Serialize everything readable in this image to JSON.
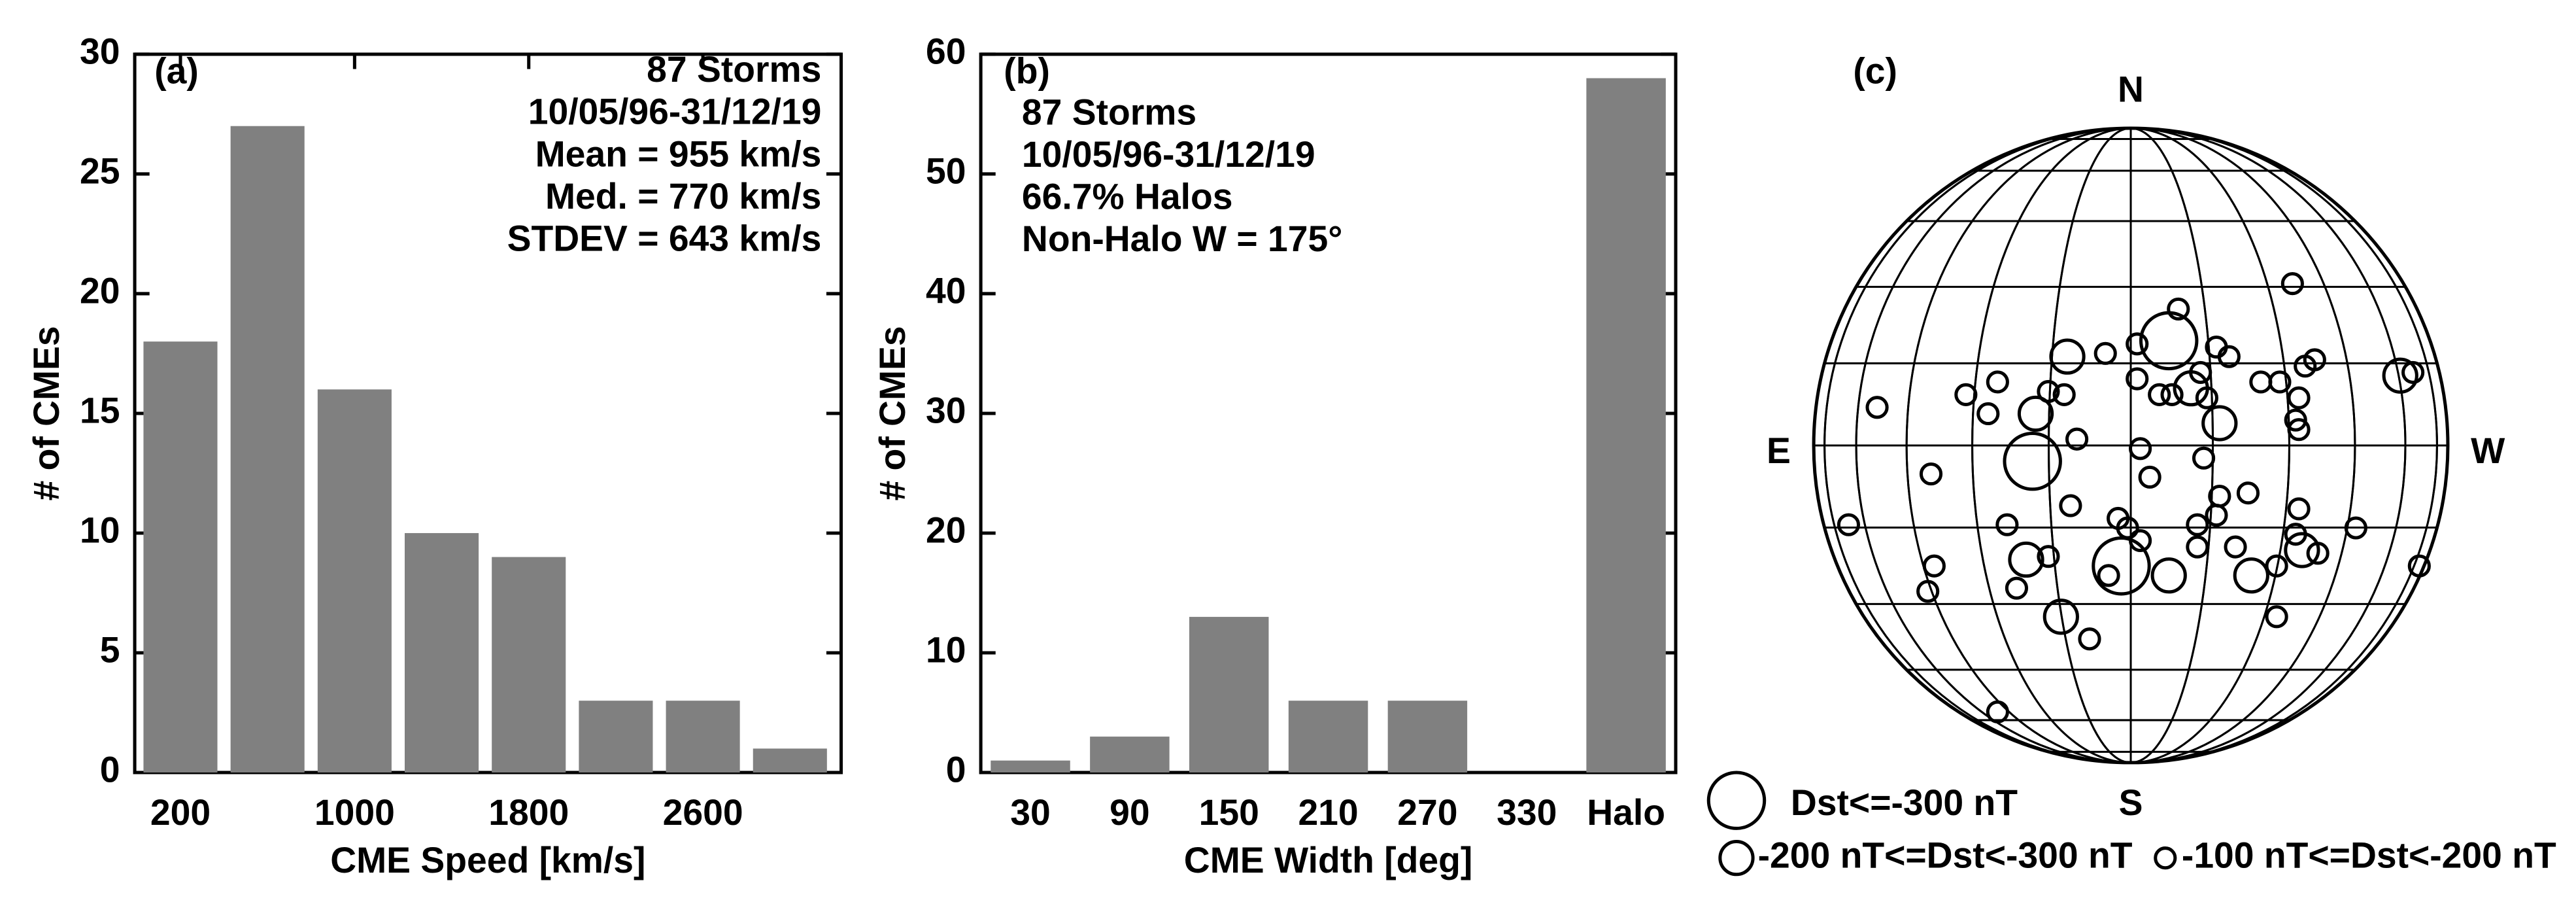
{
  "chart_data": [
    {
      "type": "histogram",
      "panel_label": "(a)",
      "annotations": [
        "87 Storms",
        "10/05/96-31/12/19",
        "Mean =  955 km/s",
        "Med. =  770 km/s",
        "STDEV = 643 km/s"
      ],
      "bins": [
        0,
        400,
        800,
        1200,
        1600,
        2000,
        2400,
        2800,
        3200
      ],
      "values": [
        18,
        27,
        16,
        10,
        9,
        3,
        3,
        1
      ],
      "color": "#808080",
      "xlim": [
        -10,
        3235
      ],
      "ylim": [
        0,
        30
      ],
      "xticks": [
        200,
        1000,
        1800,
        2600
      ],
      "yticks": [
        0,
        5,
        10,
        15,
        20,
        25,
        30
      ],
      "xlabel": "CME Speed [km/s]",
      "ylabel": "# of CMEs"
    },
    {
      "type": "bar",
      "panel_label": "(b)",
      "annotations": [
        "87 Storms",
        "10/05/96-31/12/19",
        "66.7% Halos",
        "Non-Halo W = 175°"
      ],
      "categories": [
        "30",
        "90",
        "150",
        "210",
        "270",
        "330",
        "Halo"
      ],
      "values": [
        1,
        3,
        13,
        6,
        6,
        0,
        58
      ],
      "color": "#808080",
      "ylim": [
        0,
        60
      ],
      "yticks": [
        0,
        10,
        20,
        30,
        40,
        50,
        60
      ],
      "xlabel": "CME Width [deg]",
      "ylabel": "# of CMEs"
    },
    {
      "type": "scatter",
      "panel_label": "(c)",
      "direction_labels": [
        "N",
        "S",
        "E",
        "W"
      ],
      "xlim": [
        -1,
        1
      ],
      "ylim": [
        -1,
        1
      ],
      "series": [
        {
          "name": "Dst<=-300 nT",
          "color": "#000000",
          "x": [
            -0.31,
            0.12,
            -0.03
          ],
          "y": [
            -0.05,
            0.33,
            -0.38
          ]
        },
        {
          "name": "-200 nT<=Dst<-300 nT",
          "color": "#000000",
          "x": [
            -0.2,
            -0.3,
            -0.33,
            -0.22,
            0.12,
            0.28,
            0.38,
            0.54,
            0.85,
            0.19
          ],
          "y": [
            0.28,
            0.1,
            -0.36,
            -0.54,
            -0.41,
            0.07,
            -0.41,
            -0.33,
            0.22,
            0.18
          ]
        },
        {
          "name": "-100 nT<=Dst<-200 nT",
          "color": "#000000",
          "x": [
            -0.8,
            -0.52,
            -0.45,
            -0.42,
            -0.26,
            -0.21,
            -0.17,
            -0.08,
            0.02,
            0.15,
            0.02,
            0.09,
            0.22,
            0.27,
            0.31,
            0.24,
            0.41,
            0.47,
            0.55,
            0.58,
            0.51,
            0.52,
            0.53,
            0.89,
            0.03,
            0.06,
            0.23,
            0.28,
            0.37,
            0.27,
            0.21,
            -0.04,
            -0.01,
            0.03,
            -0.07,
            0.21,
            0.33,
            0.46,
            0.46,
            0.52,
            0.59,
            0.53,
            0.71,
            0.91,
            -0.89,
            -0.63,
            -0.39,
            -0.19,
            -0.26,
            -0.36,
            -0.62,
            -0.64,
            -0.13,
            -0.42,
            0.13,
            0.53
          ],
          "y": [
            0.12,
            0.16,
            0.1,
            0.2,
            0.17,
            0.16,
            0.02,
            0.29,
            0.32,
            0.43,
            0.21,
            0.16,
            0.23,
            0.31,
            0.28,
            0.15,
            0.2,
            0.2,
            0.25,
            0.27,
            0.51,
            0.08,
            0.05,
            0.23,
            -0.01,
            -0.1,
            -0.04,
            -0.16,
            -0.15,
            -0.22,
            -0.25,
            -0.23,
            -0.26,
            -0.3,
            -0.41,
            -0.32,
            -0.32,
            -0.38,
            -0.54,
            -0.28,
            -0.34,
            -0.2,
            -0.26,
            -0.38,
            -0.25,
            -0.09,
            -0.25,
            -0.19,
            -0.35,
            -0.45,
            -0.38,
            -0.46,
            -0.61,
            -0.84,
            0.16,
            0.15
          ]
        }
      ]
    }
  ]
}
